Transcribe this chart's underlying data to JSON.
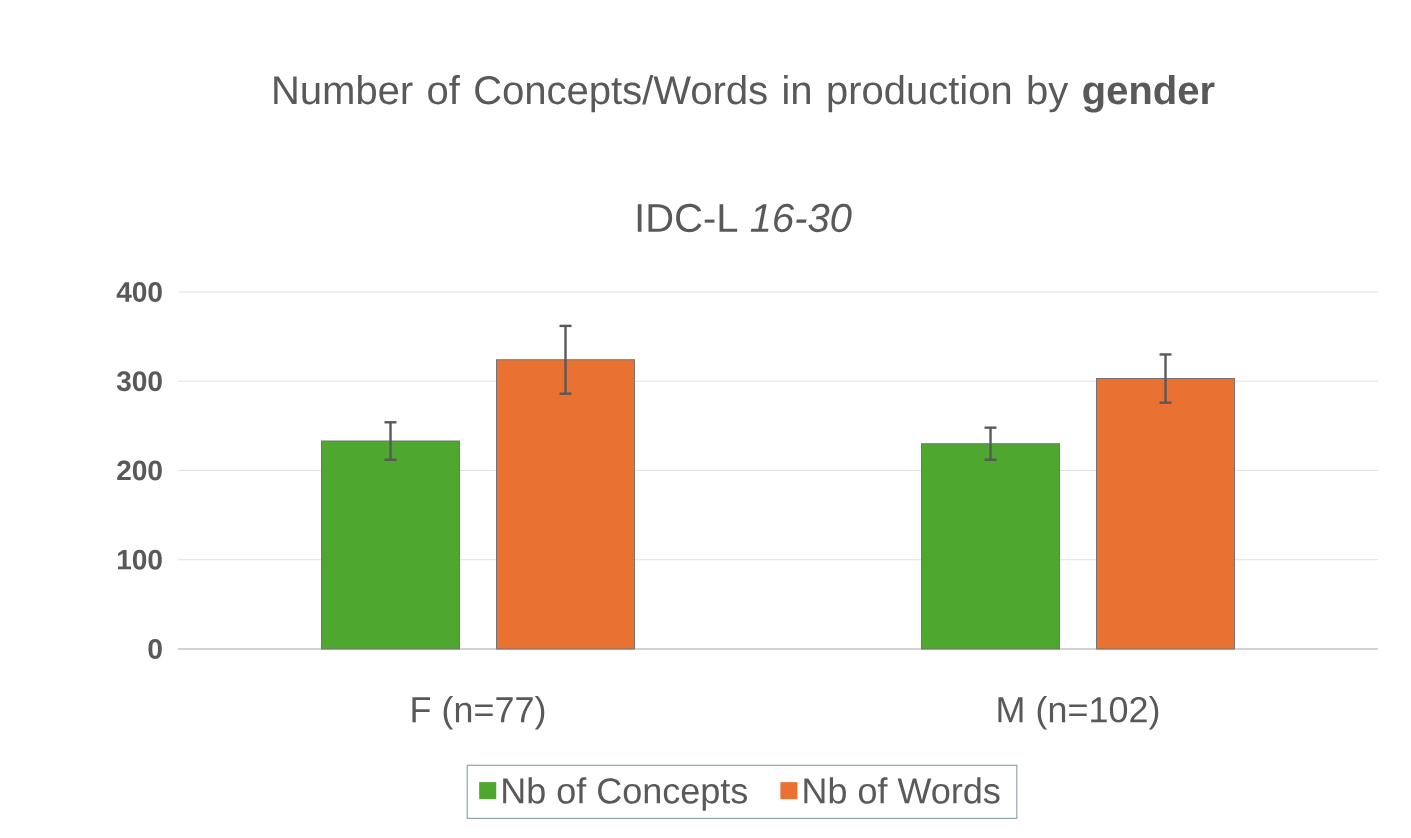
{
  "chart_data": {
    "type": "bar",
    "title": "Number of Concepts/Words in production by **gender**",
    "subtitle": "IDC-L *16-30*",
    "categories": [
      "F (n=77)",
      "M (n=102)"
    ],
    "series": [
      {
        "name": "Nb of Concepts",
        "color": "#4ea72e",
        "values": [
          233,
          230
        ],
        "errors": [
          21,
          18
        ]
      },
      {
        "name": "Nb of Words",
        "color": "#e97132",
        "values": [
          324,
          303
        ],
        "errors": [
          38,
          27
        ]
      }
    ],
    "ylim": [
      0,
      400
    ],
    "yticks": [
      0,
      100,
      200,
      300,
      400
    ],
    "grid": "y",
    "legend": "bottom"
  }
}
